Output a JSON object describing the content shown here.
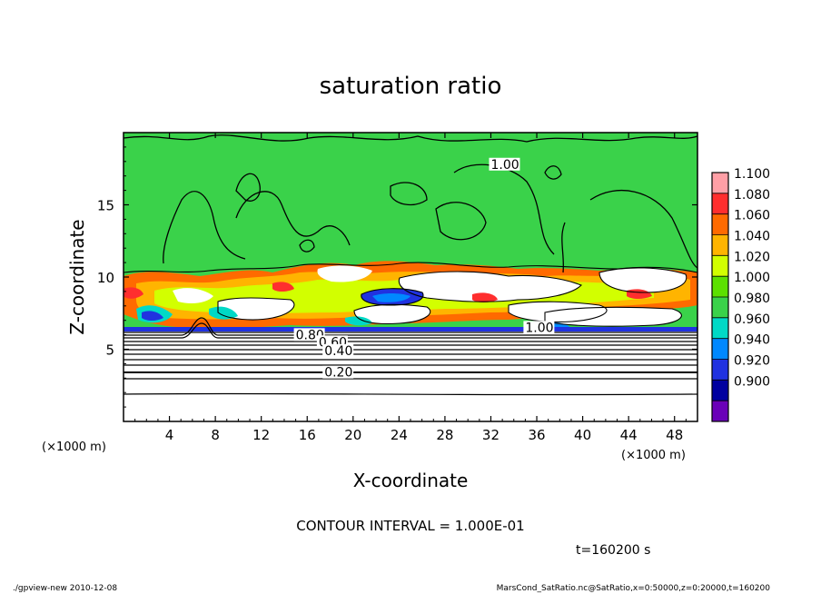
{
  "chart_data": {
    "type": "heatmap",
    "title": "saturation ratio",
    "xlabel": "X-coordinate",
    "ylabel": "Z-coordinate",
    "x_unit": "(×1000 m)",
    "y_unit": "(×1000 m)",
    "xlim": [
      0,
      50
    ],
    "ylim": [
      0,
      20
    ],
    "x_ticks": [
      4,
      8,
      12,
      16,
      20,
      24,
      28,
      32,
      36,
      40,
      44,
      48
    ],
    "y_ticks": [
      5,
      10,
      15
    ],
    "colorbar": {
      "levels": [
        "1.100",
        "1.080",
        "1.060",
        "1.040",
        "1.020",
        "1.000",
        "0.980",
        "0.960",
        "0.940",
        "0.920",
        "0.900"
      ],
      "colors": [
        "#ff9fa6",
        "#ff2e2e",
        "#ff6a00",
        "#ffb400",
        "#d2ff00",
        "#5ce000",
        "#3ad24a",
        "#00d9c6",
        "#0088ff",
        "#2032e0",
        "#0000a0",
        "#6a00b8"
      ]
    },
    "contour_labels": [
      {
        "text": "1.00",
        "x": 32,
        "z": 17.5
      },
      {
        "text": "1.00",
        "x": 35,
        "z": 6.2
      },
      {
        "text": "0.80",
        "x": 15,
        "z": 5.7
      },
      {
        "text": "0.60",
        "x": 17,
        "z": 5.2
      },
      {
        "text": "0.40",
        "x": 17.5,
        "z": 4.6
      },
      {
        "text": "0.20",
        "x": 17.5,
        "z": 3.1
      }
    ],
    "contour_interval": "CONTOUR INTERVAL = 1.000E-01",
    "time_label": "t=160200 s"
  },
  "footer": {
    "left": "./gpview-new  2010-12-08",
    "right": "MarsCond_SatRatio.nc@SatRatio,x=0:50000,z=0:20000,t=160200"
  }
}
